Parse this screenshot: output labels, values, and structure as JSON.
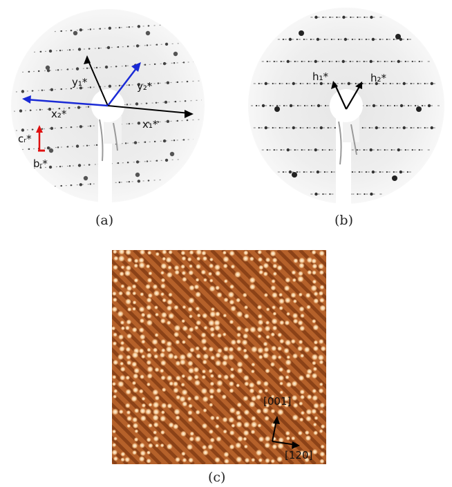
{
  "figure": {
    "panels": [
      {
        "id": "a",
        "caption": "(a)",
        "vector_labels": {
          "y1": "y₁*",
          "y2": "y₂*",
          "x1": "x₁*",
          "x2": "x₂*",
          "cr": "cᵣ*",
          "br": "bᵣ*"
        },
        "colors": {
          "black_vectors": "#000000",
          "blue_vectors": "#1a2ad6",
          "red_vectors": "#e01010"
        }
      },
      {
        "id": "b",
        "caption": "(b)",
        "vector_labels": {
          "h1": "h₁*",
          "h2": "h₂*"
        }
      },
      {
        "id": "c",
        "caption": "(c)",
        "direction_labels": {
          "d001": "[001]",
          "d120": "[120]"
        },
        "colors": {
          "stm_base": "#b5612a",
          "stm_bright": "#ffe9c8",
          "stm_dark": "#6a2a08"
        }
      }
    ]
  }
}
